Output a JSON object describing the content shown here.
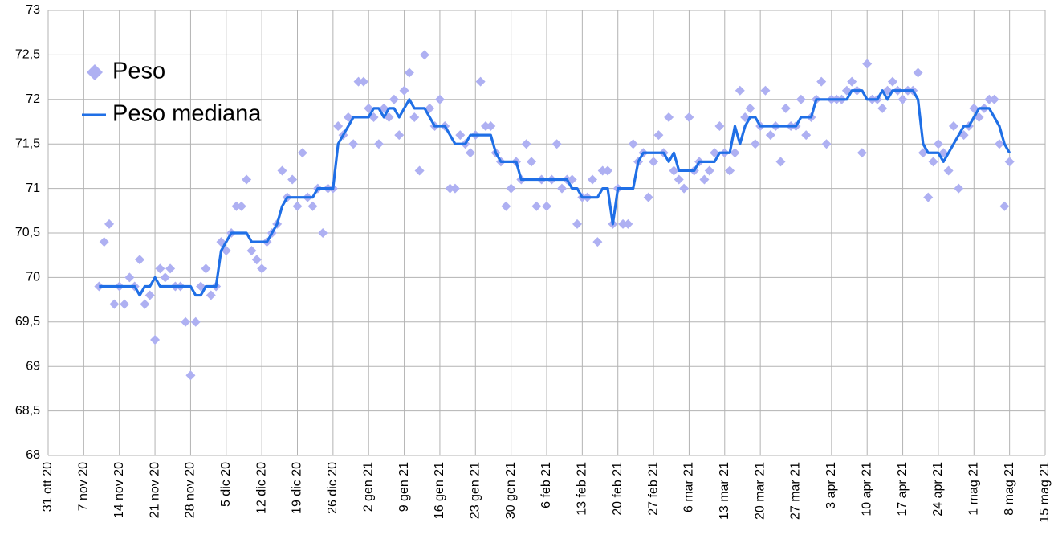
{
  "chart_data": {
    "type": "line",
    "xlim": [
      "2020-10-31",
      "2021-05-15"
    ],
    "xticks": [
      {
        "value": "2020-10-31",
        "label": "31 ott 20"
      },
      {
        "value": "2020-11-07",
        "label": "7 nov 20"
      },
      {
        "value": "2020-11-14",
        "label": "14 nov 20"
      },
      {
        "value": "2020-11-21",
        "label": "21 nov 20"
      },
      {
        "value": "2020-11-28",
        "label": "28 nov 20"
      },
      {
        "value": "2020-12-05",
        "label": "5 dic 20"
      },
      {
        "value": "2020-12-12",
        "label": "12 dic 20"
      },
      {
        "value": "2020-12-19",
        "label": "19 dic 20"
      },
      {
        "value": "2020-12-26",
        "label": "26 dic 20"
      },
      {
        "value": "2021-01-02",
        "label": "2 gen 21"
      },
      {
        "value": "2021-01-09",
        "label": "9 gen 21"
      },
      {
        "value": "2021-01-16",
        "label": "16 gen 21"
      },
      {
        "value": "2021-01-23",
        "label": "23 gen 21"
      },
      {
        "value": "2021-01-30",
        "label": "30 gen 21"
      },
      {
        "value": "2021-02-06",
        "label": "6 feb 21"
      },
      {
        "value": "2021-02-13",
        "label": "13 feb 21"
      },
      {
        "value": "2021-02-20",
        "label": "20 feb 21"
      },
      {
        "value": "2021-02-27",
        "label": "27 feb 21"
      },
      {
        "value": "2021-03-06",
        "label": "6 mar 21"
      },
      {
        "value": "2021-03-13",
        "label": "13 mar 21"
      },
      {
        "value": "2021-03-20",
        "label": "20 mar 21"
      },
      {
        "value": "2021-03-27",
        "label": "27 mar 21"
      },
      {
        "value": "2021-04-03",
        "label": "3 apr 21"
      },
      {
        "value": "2021-04-10",
        "label": "10 apr 21"
      },
      {
        "value": "2021-04-17",
        "label": "17 apr 21"
      },
      {
        "value": "2021-04-24",
        "label": "24 apr 21"
      },
      {
        "value": "2021-05-01",
        "label": "1 mag 21"
      },
      {
        "value": "2021-05-08",
        "label": "8 mag 21"
      },
      {
        "value": "2021-05-15",
        "label": "15 mag 21"
      }
    ],
    "ylim": [
      68,
      73
    ],
    "yticks": [
      68,
      {
        "value": 68.5,
        "label": "68,5"
      },
      69,
      {
        "value": 69.5,
        "label": "69,5"
      },
      70,
      {
        "value": 70.5,
        "label": "70,5"
      },
      71,
      {
        "value": 71.5,
        "label": "71,5"
      },
      72,
      {
        "value": 72.5,
        "label": "72,5"
      },
      73
    ],
    "grid": true,
    "legend": "top-left",
    "x": [
      "2020-11-10",
      "2020-11-11",
      "2020-11-12",
      "2020-11-13",
      "2020-11-14",
      "2020-11-15",
      "2020-11-16",
      "2020-11-17",
      "2020-11-18",
      "2020-11-19",
      "2020-11-20",
      "2020-11-21",
      "2020-11-22",
      "2020-11-23",
      "2020-11-24",
      "2020-11-25",
      "2020-11-26",
      "2020-11-27",
      "2020-11-28",
      "2020-11-29",
      "2020-11-30",
      "2020-12-01",
      "2020-12-02",
      "2020-12-03",
      "2020-12-04",
      "2020-12-05",
      "2020-12-06",
      "2020-12-07",
      "2020-12-08",
      "2020-12-09",
      "2020-12-10",
      "2020-12-11",
      "2020-12-12",
      "2020-12-13",
      "2020-12-14",
      "2020-12-15",
      "2020-12-16",
      "2020-12-17",
      "2020-12-18",
      "2020-12-19",
      "2020-12-20",
      "2020-12-21",
      "2020-12-22",
      "2020-12-23",
      "2020-12-24",
      "2020-12-25",
      "2020-12-26",
      "2020-12-27",
      "2020-12-28",
      "2020-12-29",
      "2020-12-30",
      "2020-12-31",
      "2021-01-01",
      "2021-01-02",
      "2021-01-03",
      "2021-01-04",
      "2021-01-05",
      "2021-01-06",
      "2021-01-07",
      "2021-01-08",
      "2021-01-09",
      "2021-01-10",
      "2021-01-11",
      "2021-01-12",
      "2021-01-13",
      "2021-01-14",
      "2021-01-15",
      "2021-01-16",
      "2021-01-17",
      "2021-01-18",
      "2021-01-19",
      "2021-01-20",
      "2021-01-21",
      "2021-01-22",
      "2021-01-23",
      "2021-01-24",
      "2021-01-25",
      "2021-01-26",
      "2021-01-27",
      "2021-01-28",
      "2021-01-29",
      "2021-01-30",
      "2021-01-31",
      "2021-02-01",
      "2021-02-02",
      "2021-02-03",
      "2021-02-04",
      "2021-02-05",
      "2021-02-06",
      "2021-02-07",
      "2021-02-08",
      "2021-02-09",
      "2021-02-10",
      "2021-02-11",
      "2021-02-12",
      "2021-02-13",
      "2021-02-14",
      "2021-02-15",
      "2021-02-16",
      "2021-02-17",
      "2021-02-18",
      "2021-02-19",
      "2021-02-20",
      "2021-02-21",
      "2021-02-22",
      "2021-02-23",
      "2021-02-24",
      "2021-02-25",
      "2021-02-26",
      "2021-02-27",
      "2021-02-28",
      "2021-03-01",
      "2021-03-02",
      "2021-03-03",
      "2021-03-04",
      "2021-03-05",
      "2021-03-06",
      "2021-03-07",
      "2021-03-08",
      "2021-03-09",
      "2021-03-10",
      "2021-03-11",
      "2021-03-12",
      "2021-03-13",
      "2021-03-14",
      "2021-03-15",
      "2021-03-16",
      "2021-03-17",
      "2021-03-18",
      "2021-03-19",
      "2021-03-20",
      "2021-03-21",
      "2021-03-22",
      "2021-03-23",
      "2021-03-24",
      "2021-03-25",
      "2021-03-26",
      "2021-03-27",
      "2021-03-28",
      "2021-03-29",
      "2021-03-30",
      "2021-03-31",
      "2021-04-01",
      "2021-04-02",
      "2021-04-03",
      "2021-04-04",
      "2021-04-05",
      "2021-04-06",
      "2021-04-07",
      "2021-04-08",
      "2021-04-09",
      "2021-04-10",
      "2021-04-11",
      "2021-04-12",
      "2021-04-13",
      "2021-04-14",
      "2021-04-15",
      "2021-04-16",
      "2021-04-17",
      "2021-04-18",
      "2021-04-19",
      "2021-04-20",
      "2021-04-21",
      "2021-04-22",
      "2021-04-23",
      "2021-04-24",
      "2021-04-25",
      "2021-04-26",
      "2021-04-27",
      "2021-04-28",
      "2021-04-29",
      "2021-04-30",
      "2021-05-01",
      "2021-05-02",
      "2021-05-03",
      "2021-05-04",
      "2021-05-05",
      "2021-05-06",
      "2021-05-07",
      "2021-05-08"
    ],
    "series": [
      {
        "name": "Peso",
        "type": "scatter",
        "color": "#aeb0f2",
        "values": [
          69.9,
          70.4,
          70.6,
          69.7,
          69.9,
          69.7,
          70.0,
          69.9,
          70.2,
          69.7,
          69.8,
          69.3,
          70.1,
          70.0,
          70.1,
          69.9,
          69.9,
          69.5,
          68.9,
          69.5,
          69.9,
          70.1,
          69.8,
          69.9,
          70.4,
          70.3,
          70.5,
          70.8,
          70.8,
          71.1,
          70.3,
          70.2,
          70.1,
          70.4,
          70.5,
          70.6,
          71.2,
          70.9,
          71.1,
          70.8,
          71.4,
          70.9,
          70.8,
          71.0,
          70.5,
          71.0,
          71.0,
          71.7,
          71.6,
          71.8,
          71.5,
          72.2,
          72.2,
          71.9,
          71.8,
          71.5,
          71.9,
          71.8,
          72.0,
          71.6,
          72.1,
          72.3,
          71.8,
          71.2,
          72.5,
          71.9,
          71.7,
          72.0,
          71.7,
          71.0,
          71.0,
          71.6,
          71.5,
          71.4,
          71.6,
          72.2,
          71.7,
          71.7,
          71.4,
          71.3,
          70.8,
          71.0,
          71.3,
          71.1,
          71.5,
          71.3,
          70.8,
          71.1,
          70.8,
          71.1,
          71.5,
          71.0,
          71.1,
          71.1,
          70.6,
          70.9,
          70.9,
          71.1,
          70.4,
          71.2,
          71.2,
          70.6,
          71.0,
          70.6,
          70.6,
          71.5,
          71.3,
          71.4,
          70.9,
          71.3,
          71.6,
          71.4,
          71.8,
          71.2,
          71.1,
          71.0,
          71.8,
          71.2,
          71.3,
          71.1,
          71.2,
          71.4,
          71.7,
          71.4,
          71.2,
          71.4,
          72.1,
          71.8,
          71.9,
          71.5,
          71.7,
          72.1,
          71.6,
          71.7,
          71.3,
          71.9,
          71.7,
          71.7,
          72.0,
          71.6,
          71.8,
          72.0,
          72.2,
          71.5,
          72.0,
          72.0,
          72.0,
          72.1,
          72.2,
          72.1,
          71.4,
          72.4,
          72.0,
          72.0,
          71.9,
          72.1,
          72.2,
          72.1,
          72.0,
          72.1,
          72.1,
          72.3,
          71.4,
          70.9,
          71.3,
          71.5,
          71.4,
          71.2,
          71.7,
          71.0,
          71.6,
          71.7,
          71.9,
          71.8,
          71.9,
          72.0,
          72.0,
          71.5,
          70.8,
          71.3
        ]
      },
      {
        "name": "Peso mediana",
        "type": "line",
        "color": "#1f6fe6",
        "values": [
          69.9,
          69.9,
          69.9,
          69.9,
          69.9,
          69.9,
          69.9,
          69.9,
          69.8,
          69.9,
          69.9,
          70.0,
          69.9,
          69.9,
          69.9,
          69.9,
          69.9,
          69.9,
          69.9,
          69.8,
          69.8,
          69.9,
          69.9,
          69.9,
          70.3,
          70.4,
          70.5,
          70.5,
          70.5,
          70.5,
          70.4,
          70.4,
          70.4,
          70.4,
          70.5,
          70.6,
          70.8,
          70.9,
          70.9,
          70.9,
          70.9,
          70.9,
          70.9,
          71.0,
          71.0,
          71.0,
          71.0,
          71.5,
          71.6,
          71.7,
          71.8,
          71.8,
          71.8,
          71.8,
          71.9,
          71.9,
          71.8,
          71.9,
          71.9,
          71.8,
          71.9,
          72.0,
          71.9,
          71.9,
          71.9,
          71.8,
          71.7,
          71.7,
          71.7,
          71.6,
          71.5,
          71.5,
          71.5,
          71.6,
          71.6,
          71.6,
          71.6,
          71.6,
          71.4,
          71.3,
          71.3,
          71.3,
          71.3,
          71.1,
          71.1,
          71.1,
          71.1,
          71.1,
          71.1,
          71.1,
          71.1,
          71.1,
          71.1,
          71.0,
          71.0,
          70.9,
          70.9,
          70.9,
          70.9,
          71.0,
          71.0,
          70.6,
          71.0,
          71.0,
          71.0,
          71.0,
          71.3,
          71.4,
          71.4,
          71.4,
          71.4,
          71.4,
          71.3,
          71.4,
          71.2,
          71.2,
          71.2,
          71.2,
          71.3,
          71.3,
          71.3,
          71.3,
          71.4,
          71.4,
          71.4,
          71.7,
          71.5,
          71.7,
          71.8,
          71.8,
          71.7,
          71.7,
          71.7,
          71.7,
          71.7,
          71.7,
          71.7,
          71.7,
          71.8,
          71.8,
          71.8,
          72.0,
          72.0,
          72.0,
          72.0,
          72.0,
          72.0,
          72.0,
          72.1,
          72.1,
          72.1,
          72.0,
          72.0,
          72.0,
          72.1,
          72.0,
          72.1,
          72.1,
          72.1,
          72.1,
          72.1,
          72.0,
          71.5,
          71.4,
          71.4,
          71.4,
          71.3,
          71.4,
          71.5,
          71.6,
          71.7,
          71.7,
          71.8,
          71.9,
          71.9,
          71.9,
          71.8,
          71.7,
          71.5,
          71.4
        ]
      }
    ]
  }
}
